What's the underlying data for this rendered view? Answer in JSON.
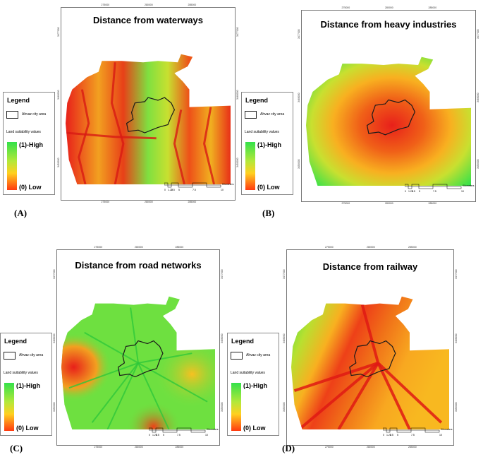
{
  "panels": [
    {
      "id": "A",
      "label": "(A)",
      "title": "Distance from waterways",
      "top_coords": [
        "275000",
        "280000",
        "285000"
      ],
      "bottom_coords": [
        "275000",
        "280000",
        "285000"
      ],
      "left_coords": [
        "3477000",
        "3466000",
        "3450000"
      ],
      "right_coords": [
        "3477000",
        "3466000",
        "3450000"
      ],
      "pattern": "waterways"
    },
    {
      "id": "B",
      "label": "(B)",
      "title": "Distance from heavy industries",
      "top_coords": [
        "275000",
        "280000",
        "285000"
      ],
      "bottom_coords": [
        "275000",
        "280000",
        "285000"
      ],
      "left_coords": [
        "3477000",
        "3466000",
        "3450000"
      ],
      "right_coords": [
        "3477000",
        "3466000",
        "3450000"
      ],
      "pattern": "industries"
    },
    {
      "id": "C",
      "label": "(C)",
      "title": "Distance from road networks",
      "top_coords": [
        "275000",
        "280000",
        "285000"
      ],
      "bottom_coords": [
        "275000",
        "280000",
        "285000"
      ],
      "left_coords": [
        "3477000",
        "3466000",
        "3450000"
      ],
      "right_coords": [
        "3477000",
        "3466000",
        "3450000"
      ],
      "pattern": "roads"
    },
    {
      "id": "D",
      "label": "(D)",
      "title": "Distance from railway",
      "top_coords": [
        "275000",
        "280000",
        "285000"
      ],
      "bottom_coords": [
        "275000",
        "280000",
        "285000"
      ],
      "left_coords": [
        "3477000",
        "3466000",
        "3450000"
      ],
      "right_coords": [
        "3477000",
        "3466000",
        "3450000"
      ],
      "pattern": "railway"
    }
  ],
  "legend": {
    "title": "Legend",
    "city_area": "Ahvaz city area",
    "suitability_title": "Land suitability values",
    "high": "(1)-High",
    "low": "(0) Low",
    "ramp_colors": [
      "#33e14a",
      "#b3e83a",
      "#ffd020",
      "#ff3a10"
    ]
  },
  "scale_bar": {
    "unit": "Kilometers",
    "ticks": [
      "0",
      "1.25",
      "2.5",
      "5",
      "7.5",
      "10"
    ]
  },
  "colors": {
    "high": "#33e14a",
    "mid": "#f0e030",
    "low": "#e8201a",
    "city_outline": "#1a1a1a"
  }
}
